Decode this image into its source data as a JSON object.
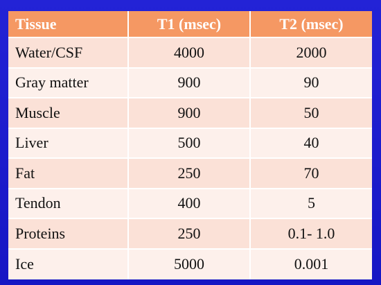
{
  "table": {
    "headers": {
      "tissue": "Tissue",
      "t1": "T1 (msec)",
      "t2": "T2 (msec)"
    },
    "rows": [
      {
        "tissue": "Water/CSF",
        "t1": "4000",
        "t2": "2000"
      },
      {
        "tissue": "Gray matter",
        "t1": "900",
        "t2": "90"
      },
      {
        "tissue": "Muscle",
        "t1": "900",
        "t2": "50"
      },
      {
        "tissue": "Liver",
        "t1": "500",
        "t2": "40"
      },
      {
        "tissue": "Fat",
        "t1": "250",
        "t2": "70"
      },
      {
        "tissue": "Tendon",
        "t1": "400",
        "t2": "5"
      },
      {
        "tissue": "Proteins",
        "t1": "250",
        "t2": "0.1- 1.0"
      },
      {
        "tissue": "Ice",
        "t1": "5000",
        "t2": "0.001"
      }
    ]
  },
  "colors": {
    "background": "#1a1acb",
    "header": "#f59863",
    "row_odd": "#fbe1d7",
    "row_even": "#fdf0eb"
  }
}
